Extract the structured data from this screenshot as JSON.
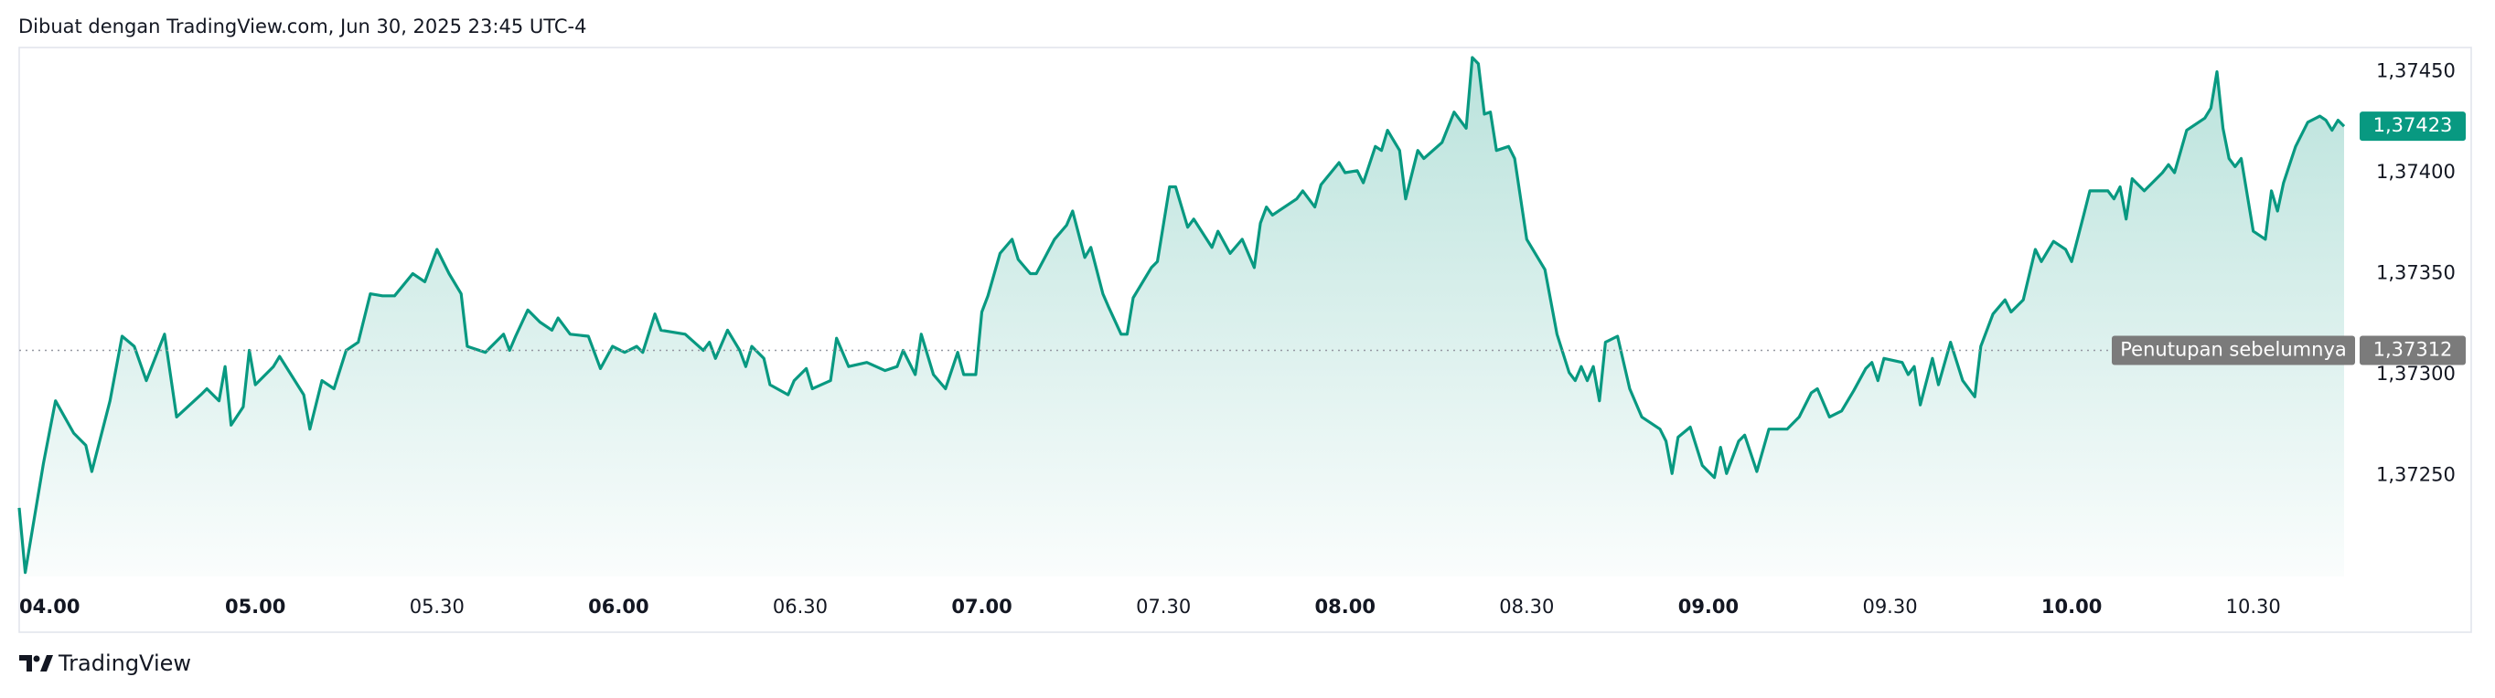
{
  "header": {
    "text": "Dibuat dengan TradingView.com, Jun 30, 2025 23:45 UTC-4"
  },
  "footer": {
    "brand": "TradingView"
  },
  "chart_data": {
    "type": "area",
    "color": "#089981",
    "x": [
      "04.21",
      "04.22",
      "04.25",
      "04.27",
      "04.30",
      "04.32",
      "04.33",
      "04.36",
      "04.38",
      "04.40",
      "04.42",
      "04.45",
      "04.47",
      "04.51",
      "04.52",
      "04.54",
      "04.55",
      "04.56",
      "04.58",
      "04.59",
      "05.00",
      "05.03",
      "05.04",
      "05.08",
      "05.09",
      "05.11",
      "05.13",
      "05.15",
      "05.17",
      "05.19",
      "05.21",
      "05.23",
      "05.26",
      "05.28",
      "05.30",
      "05.32",
      "05.34",
      "05.35",
      "05.38",
      "05.41",
      "05.42",
      "05.43",
      "05.45",
      "05.47",
      "05.49",
      "05.50",
      "05.52",
      "05.55",
      "05.57",
      "05.59",
      "06.01",
      "06.03",
      "06.04",
      "06.06",
      "06.07",
      "06.11",
      "06.14",
      "06.15",
      "06.16",
      "06.18",
      "06.20",
      "06.21",
      "06.22",
      "06.24",
      "06.25",
      "06.28",
      "06.29",
      "06.31",
      "06.32",
      "06.35",
      "06.36",
      "06.38",
      "06.41",
      "06.44",
      "06.46",
      "06.47",
      "06.49",
      "06.50",
      "06.52",
      "06.54",
      "06.56",
      "06.57",
      "06.59",
      "07.00",
      "07.01",
      "07.03",
      "07.05",
      "07.06",
      "07.08",
      "07.09",
      "07.12",
      "07.14",
      "07.15",
      "07.17",
      "07.18",
      "07.20",
      "07.21",
      "07.23",
      "07.24",
      "07.25",
      "07.28",
      "07.29",
      "07.31",
      "07.32",
      "07.34",
      "07.35",
      "07.38",
      "07.39",
      "07.41",
      "07.43",
      "07.45",
      "07.46",
      "07.47",
      "07.48",
      "07.52",
      "07.53",
      "07.55",
      "07.56",
      "07.59",
      "08.00",
      "08.02",
      "08.03",
      "08.05",
      "08.06",
      "08.07",
      "08.09",
      "08.10",
      "08.12",
      "08.13",
      "08.16",
      "08.18",
      "08.20",
      "08.21",
      "08.22",
      "08.23",
      "08.24",
      "08.25",
      "08.27",
      "08.28",
      "08.30",
      "08.33",
      "08.35",
      "08.37",
      "08.38",
      "08.39",
      "08.40",
      "08.41",
      "08.42",
      "08.43",
      "08.45",
      "08.47",
      "08.49",
      "08.52",
      "08.53",
      "08.54",
      "08.55",
      "08.57",
      "08.59",
      "09.01",
      "09.02",
      "09.03",
      "09.05",
      "09.06",
      "09.08",
      "09.10",
      "09.13",
      "09.15",
      "09.17",
      "09.18",
      "09.20",
      "09.22",
      "09.24",
      "09.26",
      "09.27",
      "09.28",
      "09.29",
      "09.32",
      "09.33",
      "09.34",
      "09.35",
      "09.37",
      "09.38",
      "09.40",
      "09.42",
      "09.44",
      "09.45",
      "09.47",
      "09.49",
      "09.50",
      "09.52",
      "09.54",
      "09.55",
      "09.57",
      "09.59",
      "10.00",
      "10.02",
      "10.03",
      "10.06",
      "10.07",
      "10.08",
      "10.09",
      "10.10",
      "10.12",
      "10.15",
      "10.16",
      "10.17",
      "10.19",
      "10.22",
      "10.23",
      "10.24",
      "10.25",
      "10.26",
      "10.27",
      "10.28",
      "10.30",
      "10.32",
      "10.33",
      "10.34",
      "10.35",
      "10.37",
      "10.39",
      "10.41",
      "10.42",
      "10.43",
      "10.44",
      "10.45"
    ],
    "values": [
      1.37234,
      1.37202,
      1.37256,
      1.37287,
      1.37271,
      1.37265,
      1.37252,
      1.37287,
      1.37319,
      1.37314,
      1.37297,
      1.3732,
      1.37279,
      1.3729,
      1.37293,
      1.37287,
      1.37304,
      1.37275,
      1.37284,
      1.37312,
      1.37295,
      1.37304,
      1.37309,
      1.3729,
      1.37273,
      1.37297,
      1.37293,
      1.37312,
      1.37316,
      1.3734,
      1.37339,
      1.37339,
      1.3735,
      1.37346,
      1.37362,
      1.3735,
      1.3734,
      1.37314,
      1.37311,
      1.3732,
      1.37312,
      1.37319,
      1.37332,
      1.37326,
      1.37322,
      1.37328,
      1.3732,
      1.37319,
      1.37303,
      1.37314,
      1.37311,
      1.37314,
      1.37311,
      1.3733,
      1.37322,
      1.3732,
      1.37312,
      1.37316,
      1.37308,
      1.37322,
      1.37312,
      1.37304,
      1.37314,
      1.37308,
      1.37295,
      1.3729,
      1.37297,
      1.37303,
      1.37293,
      1.37297,
      1.37318,
      1.37304,
      1.37306,
      1.37302,
      1.37304,
      1.37312,
      1.373,
      1.3732,
      1.373,
      1.37293,
      1.37311,
      1.373,
      1.373,
      1.37331,
      1.37339,
      1.3736,
      1.37367,
      1.37357,
      1.3735,
      1.3735,
      1.37367,
      1.37374,
      1.37381,
      1.37358,
      1.37363,
      1.3734,
      1.37333,
      1.3732,
      1.3732,
      1.37338,
      1.37353,
      1.37356,
      1.37393,
      1.37393,
      1.37373,
      1.37377,
      1.37363,
      1.37371,
      1.3736,
      1.37367,
      1.37353,
      1.37375,
      1.37383,
      1.37379,
      1.37387,
      1.37391,
      1.37383,
      1.37394,
      1.37405,
      1.374,
      1.37401,
      1.37395,
      1.37413,
      1.37411,
      1.37421,
      1.37411,
      1.37387,
      1.37411,
      1.37407,
      1.37415,
      1.3743,
      1.37422,
      1.37457,
      1.37454,
      1.37429,
      1.3743,
      1.37411,
      1.37413,
      1.37407,
      1.37367,
      1.37352,
      1.3732,
      1.37301,
      1.37297,
      1.37304,
      1.37297,
      1.37304,
      1.37287,
      1.37316,
      1.37319,
      1.37293,
      1.37279,
      1.37273,
      1.37267,
      1.37251,
      1.37269,
      1.37274,
      1.37255,
      1.37249,
      1.37264,
      1.37251,
      1.37267,
      1.3727,
      1.37252,
      1.37273,
      1.37273,
      1.37279,
      1.37291,
      1.37293,
      1.37279,
      1.37282,
      1.37292,
      1.37303,
      1.37306,
      1.37297,
      1.37308,
      1.37306,
      1.373,
      1.37304,
      1.37285,
      1.37308,
      1.37295,
      1.37316,
      1.37297,
      1.37289,
      1.37314,
      1.3733,
      1.37337,
      1.37331,
      1.37337,
      1.37362,
      1.37356,
      1.37366,
      1.37362,
      1.37356,
      1.37379,
      1.37391,
      1.37391,
      1.37387,
      1.37393,
      1.37377,
      1.37397,
      1.37391,
      1.374,
      1.37404,
      1.374,
      1.37421,
      1.37427,
      1.37432,
      1.3745,
      1.37422,
      1.37407,
      1.37403,
      1.37407,
      1.37371,
      1.37367,
      1.37391,
      1.37381,
      1.37395,
      1.37413,
      1.37425,
      1.37428,
      1.37426,
      1.37421,
      1.37426,
      1.37423
    ],
    "xlim": [
      "04.21",
      "10.45"
    ],
    "xticks": [
      "05.00",
      "05.30",
      "06.00",
      "06.30",
      "07.00",
      "07.30",
      "08.00",
      "08.30",
      "09.00",
      "09.30",
      "10.00",
      "10.30"
    ],
    "x_first_label": "04.00",
    "ylim": [
      1.372,
      1.37462
    ],
    "yticks": [
      {
        "value": 1.3725,
        "label": "1,37250"
      },
      {
        "value": 1.373,
        "label": "1,37300"
      },
      {
        "value": 1.3735,
        "label": "1,37350"
      },
      {
        "value": 1.374,
        "label": "1,37400"
      },
      {
        "value": 1.3745,
        "label": "1,37450"
      }
    ],
    "last_price": {
      "value": 1.37423,
      "label": "1,37423",
      "color": "#089981"
    },
    "previous_close": {
      "name": "Penutupan sebelumnya",
      "value": 1.37312,
      "label": "1,37312",
      "color": "#7b7b7b"
    }
  }
}
